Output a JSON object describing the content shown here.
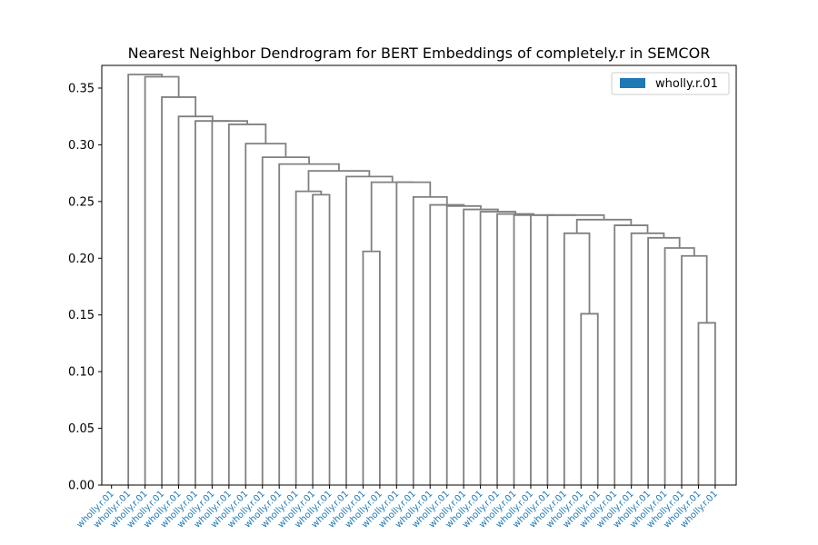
{
  "chart_data": {
    "type": "dendrogram",
    "title": "Nearest Neighbor Dendrogram for BERT Embeddings of completely.r in SEMCOR",
    "xlabel": "",
    "ylabel": "",
    "ylim": [
      0,
      0.37
    ],
    "yticks": [
      "0.00",
      "0.05",
      "0.10",
      "0.15",
      "0.20",
      "0.25",
      "0.30",
      "0.35"
    ],
    "ytick_values": [
      0,
      0.05,
      0.1,
      0.15,
      0.2,
      0.25,
      0.3,
      0.35
    ],
    "grid": false,
    "legend": {
      "placement": "top-right",
      "entries": [
        {
          "label": "wholly.r.01",
          "color": "#1f77b4"
        }
      ]
    },
    "link_color": "#808080",
    "leaf_label_color": "#1f77b4",
    "leaves": [
      "wholly.r.01",
      "wholly.r.01",
      "wholly.r.01",
      "wholly.r.01",
      "wholly.r.01",
      "wholly.r.01",
      "wholly.r.01",
      "wholly.r.01",
      "wholly.r.01",
      "wholly.r.01",
      "wholly.r.01",
      "wholly.r.01",
      "wholly.r.01",
      "wholly.r.01",
      "wholly.r.01",
      "wholly.r.01",
      "wholly.r.01",
      "wholly.r.01",
      "wholly.r.01",
      "wholly.r.01",
      "wholly.r.01",
      "wholly.r.01",
      "wholly.r.01",
      "wholly.r.01",
      "wholly.r.01",
      "wholly.r.01",
      "wholly.r.01",
      "wholly.r.01",
      "wholly.r.01",
      "wholly.r.01",
      "wholly.r.01",
      "wholly.r.01",
      "wholly.r.01",
      "wholly.r.01",
      "wholly.r.01",
      "wholly.r.01",
      "wholly.r.01"
    ],
    "merges": [
      {
        "left": 35,
        "right": 36,
        "height": 0.143
      },
      {
        "left": 34,
        "right": "m0",
        "height": 0.202
      },
      {
        "left": 33,
        "right": "m1",
        "height": 0.209
      },
      {
        "left": 32,
        "right": "m2",
        "height": 0.218
      },
      {
        "left": 31,
        "right": "m3",
        "height": 0.222
      },
      {
        "left": 30,
        "right": "m4",
        "height": 0.229
      },
      {
        "left": 28,
        "right": 29,
        "height": 0.151
      },
      {
        "left": 27,
        "right": "m6",
        "height": 0.222
      },
      {
        "left": "m7",
        "right": "m5",
        "height": 0.234
      },
      {
        "left": 26,
        "right": "m8",
        "height": 0.238
      },
      {
        "left": 25,
        "right": "m9",
        "height": 0.238
      },
      {
        "left": 24,
        "right": "m10",
        "height": 0.238
      },
      {
        "left": 23,
        "right": "m11",
        "height": 0.239
      },
      {
        "left": 22,
        "right": "m12",
        "height": 0.241
      },
      {
        "left": 21,
        "right": "m13",
        "height": 0.243
      },
      {
        "left": 20,
        "right": "m14",
        "height": 0.246
      },
      {
        "left": 19,
        "right": "m15",
        "height": 0.247
      },
      {
        "left": 18,
        "right": "m16",
        "height": 0.254
      },
      {
        "left": 17,
        "right": "m17",
        "height": 0.267
      },
      {
        "left": 15,
        "right": 16,
        "height": 0.206
      },
      {
        "left": "m19",
        "right": "m18",
        "height": 0.267
      },
      {
        "left": 14,
        "right": "m20",
        "height": 0.272
      },
      {
        "left": 12,
        "right": 13,
        "height": 0.256
      },
      {
        "left": 11,
        "right": "m22",
        "height": 0.259
      },
      {
        "left": "m23",
        "right": "m21",
        "height": 0.277
      },
      {
        "left": 10,
        "right": "m24",
        "height": 0.283
      },
      {
        "left": 9,
        "right": "m25",
        "height": 0.289
      },
      {
        "left": 8,
        "right": "m26",
        "height": 0.301
      },
      {
        "left": 7,
        "right": "m27",
        "height": 0.318
      },
      {
        "left": 6,
        "right": "m28",
        "height": 0.321
      },
      {
        "left": 5,
        "right": "m29",
        "height": 0.321
      },
      {
        "left": 4,
        "right": "m30",
        "height": 0.325
      },
      {
        "left": 3,
        "right": "m31",
        "height": 0.342
      },
      {
        "left": 2,
        "right": "m32",
        "height": 0.36
      },
      {
        "left": 1,
        "right": "m33",
        "height": 0.362
      }
    ]
  }
}
